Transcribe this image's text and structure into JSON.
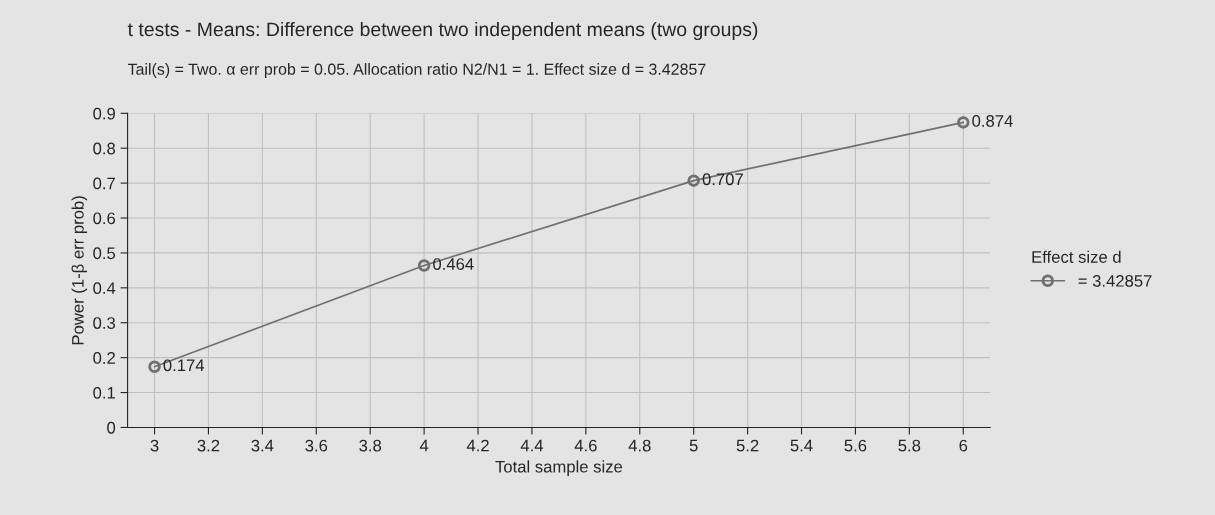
{
  "chart_data": {
    "type": "line",
    "title": "t tests - Means: Difference between two independent means (two groups)",
    "subtitle": "Tail(s) = Two. α err prob = 0.05. Allocation ratio N2/N1 = 1. Effect size d = 3.42857",
    "xlabel": "Total sample size",
    "ylabel": "Power (1-β err prob)",
    "legend_title": "Effect size d",
    "x": [
      3,
      4,
      5,
      6
    ],
    "series": [
      {
        "name": "= 3.42857",
        "color": "#707070",
        "values": [
          0.174,
          0.464,
          0.707,
          0.874
        ]
      }
    ],
    "data_labels": true,
    "marker": "circle",
    "line_style": "solid",
    "grid": true,
    "legend": "right",
    "xlim": [
      2.9,
      6.1
    ],
    "ylim": [
      0,
      0.9
    ],
    "xticks": [
      3,
      3.2,
      3.4,
      3.6,
      3.8,
      4,
      4.2,
      4.4,
      4.6,
      4.8,
      5,
      5.2,
      5.4,
      5.6,
      5.8,
      6
    ],
    "yticks": [
      0,
      0.1,
      0.2,
      0.3,
      0.4,
      0.5,
      0.6,
      0.7,
      0.8,
      0.9
    ]
  }
}
